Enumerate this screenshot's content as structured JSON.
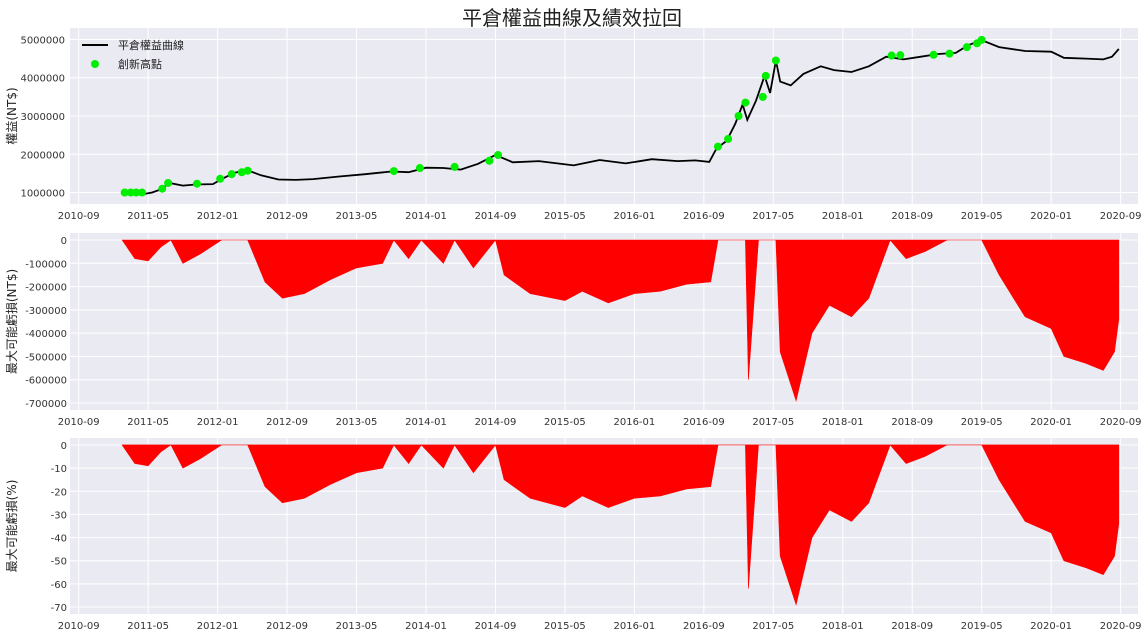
{
  "title": "平倉權益曲線及績效拉回",
  "chart_data": [
    {
      "type": "line",
      "ylabel": "權益(NT$)",
      "x_range": [
        "2010-08",
        "2020-11"
      ],
      "ylim": [
        700000,
        5300000
      ],
      "grid": true,
      "legend_placement": "top-left",
      "y_ticks": [
        1000000,
        2000000,
        3000000,
        4000000,
        5000000
      ],
      "x_ticks": [
        "2010-09",
        "2011-05",
        "2012-01",
        "2012-09",
        "2013-05",
        "2014-01",
        "2014-09",
        "2015-05",
        "2016-01",
        "2016-09",
        "2017-05",
        "2018-01",
        "2018-09",
        "2019-05",
        "2020-01",
        "2020-09"
      ],
      "series": [
        {
          "name": "平倉權益曲線",
          "color": "#000000",
          "points": [
            [
              "2011-02-01",
              1000000
            ],
            [
              "2011-03-15",
              990000
            ],
            [
              "2011-04-15",
              960000
            ],
            [
              "2011-05-15",
              1000000
            ],
            [
              "2011-06-15",
              1080000
            ],
            [
              "2011-07-15",
              1250000
            ],
            [
              "2011-09-01",
              1180000
            ],
            [
              "2011-10-15",
              1210000
            ],
            [
              "2011-12-15",
              1220000
            ],
            [
              "2012-01-15",
              1350000
            ],
            [
              "2012-03-01",
              1520000
            ],
            [
              "2012-04-15",
              1580000
            ],
            [
              "2012-06-01",
              1450000
            ],
            [
              "2012-08-01",
              1340000
            ],
            [
              "2012-10-01",
              1330000
            ],
            [
              "2012-12-01",
              1350000
            ],
            [
              "2013-03-01",
              1420000
            ],
            [
              "2013-06-01",
              1480000
            ],
            [
              "2013-09-01",
              1550000
            ],
            [
              "2013-11-01",
              1530000
            ],
            [
              "2014-01-01",
              1650000
            ],
            [
              "2014-03-01",
              1640000
            ],
            [
              "2014-05-01",
              1600000
            ],
            [
              "2014-07-01",
              1750000
            ],
            [
              "2014-09-01",
              1980000
            ],
            [
              "2014-11-01",
              1790000
            ],
            [
              "2015-02-01",
              1820000
            ],
            [
              "2015-06-01",
              1710000
            ],
            [
              "2015-09-01",
              1850000
            ],
            [
              "2015-12-01",
              1760000
            ],
            [
              "2016-03-01",
              1870000
            ],
            [
              "2016-06-01",
              1820000
            ],
            [
              "2016-08-01",
              1840000
            ],
            [
              "2016-09-20",
              1800000
            ],
            [
              "2016-10-15",
              2150000
            ],
            [
              "2016-11-20",
              2350000
            ],
            [
              "2016-12-20",
              2800000
            ],
            [
              "2017-01-15",
              3300000
            ],
            [
              "2017-02-01",
              2900000
            ],
            [
              "2017-03-01",
              3400000
            ],
            [
              "2017-04-01",
              4050000
            ],
            [
              "2017-04-20",
              3600000
            ],
            [
              "2017-05-10",
              4450000
            ],
            [
              "2017-05-25",
              3900000
            ],
            [
              "2017-07-01",
              3800000
            ],
            [
              "2017-08-15",
              4100000
            ],
            [
              "2017-10-15",
              4300000
            ],
            [
              "2017-12-01",
              4200000
            ],
            [
              "2018-02-01",
              4150000
            ],
            [
              "2018-04-01",
              4300000
            ],
            [
              "2018-06-01",
              4550000
            ],
            [
              "2018-08-01",
              4480000
            ],
            [
              "2018-10-01",
              4550000
            ],
            [
              "2018-12-01",
              4620000
            ],
            [
              "2019-02-01",
              4650000
            ],
            [
              "2019-03-15",
              4850000
            ],
            [
              "2019-05-01",
              4980000
            ],
            [
              "2019-07-01",
              4800000
            ],
            [
              "2019-10-01",
              4700000
            ],
            [
              "2020-01-01",
              4680000
            ],
            [
              "2020-02-15",
              4520000
            ],
            [
              "2020-05-01",
              4500000
            ],
            [
              "2020-07-01",
              4480000
            ],
            [
              "2020-08-01",
              4550000
            ],
            [
              "2020-08-25",
              4750000
            ]
          ]
        },
        {
          "name": "創新高點",
          "color": "#00ee00",
          "points": [
            [
              "2011-02-10",
              1000000
            ],
            [
              "2011-03-01",
              1000000
            ],
            [
              "2011-03-20",
              1000000
            ],
            [
              "2011-04-10",
              1000000
            ],
            [
              "2011-06-20",
              1100000
            ],
            [
              "2011-07-10",
              1250000
            ],
            [
              "2011-10-20",
              1230000
            ],
            [
              "2012-01-10",
              1360000
            ],
            [
              "2012-02-20",
              1480000
            ],
            [
              "2012-03-25",
              1530000
            ],
            [
              "2012-04-15",
              1570000
            ],
            [
              "2013-09-10",
              1560000
            ],
            [
              "2013-12-10",
              1640000
            ],
            [
              "2014-04-10",
              1670000
            ],
            [
              "2014-08-10",
              1830000
            ],
            [
              "2014-09-10",
              1980000
            ],
            [
              "2016-10-20",
              2200000
            ],
            [
              "2016-11-25",
              2400000
            ],
            [
              "2017-01-01",
              3000000
            ],
            [
              "2017-01-25",
              3350000
            ],
            [
              "2017-03-25",
              3500000
            ],
            [
              "2017-04-05",
              4050000
            ],
            [
              "2017-05-10",
              4450000
            ],
            [
              "2018-06-20",
              4580000
            ],
            [
              "2018-07-20",
              4590000
            ],
            [
              "2018-11-15",
              4600000
            ],
            [
              "2019-01-10",
              4630000
            ],
            [
              "2019-03-10",
              4800000
            ],
            [
              "2019-04-15",
              4900000
            ],
            [
              "2019-05-01",
              4990000
            ]
          ]
        }
      ]
    },
    {
      "type": "area",
      "ylabel": "最大可能虧損(NT$)",
      "ylim": [
        -730000,
        30000
      ],
      "grid": true,
      "y_ticks": [
        0,
        -100000,
        -200000,
        -300000,
        -400000,
        -500000,
        -600000,
        -700000
      ],
      "x_ticks": [
        "2010-09",
        "2011-05",
        "2012-01",
        "2012-09",
        "2013-05",
        "2014-01",
        "2014-09",
        "2015-05",
        "2016-01",
        "2016-09",
        "2017-05",
        "2018-01",
        "2018-09",
        "2019-05",
        "2020-01",
        "2020-09"
      ],
      "series": [
        {
          "color": "#ff0000",
          "points": [
            [
              "2011-02-01",
              0
            ],
            [
              "2011-03-15",
              -80000
            ],
            [
              "2011-05-01",
              -90000
            ],
            [
              "2011-06-15",
              -30000
            ],
            [
              "2011-07-20",
              0
            ],
            [
              "2011-09-01",
              -100000
            ],
            [
              "2011-11-01",
              -60000
            ],
            [
              "2012-01-15",
              0
            ],
            [
              "2012-04-15",
              0
            ],
            [
              "2012-06-15",
              -180000
            ],
            [
              "2012-08-15",
              -250000
            ],
            [
              "2012-11-01",
              -230000
            ],
            [
              "2013-02-01",
              -170000
            ],
            [
              "2013-05-01",
              -120000
            ],
            [
              "2013-08-01",
              -100000
            ],
            [
              "2013-09-10",
              0
            ],
            [
              "2013-11-01",
              -80000
            ],
            [
              "2013-12-15",
              0
            ],
            [
              "2014-03-01",
              -100000
            ],
            [
              "2014-04-10",
              0
            ],
            [
              "2014-06-15",
              -120000
            ],
            [
              "2014-09-01",
              0
            ],
            [
              "2014-10-01",
              -150000
            ],
            [
              "2015-01-01",
              -230000
            ],
            [
              "2015-05-01",
              -260000
            ],
            [
              "2015-07-01",
              -220000
            ],
            [
              "2015-10-01",
              -270000
            ],
            [
              "2016-01-01",
              -230000
            ],
            [
              "2016-04-01",
              -220000
            ],
            [
              "2016-07-01",
              -190000
            ],
            [
              "2016-09-25",
              -180000
            ],
            [
              "2016-10-20",
              0
            ],
            [
              "2017-01-25",
              0
            ],
            [
              "2017-02-05",
              -600000
            ],
            [
              "2017-03-10",
              0
            ],
            [
              "2017-05-10",
              0
            ],
            [
              "2017-05-25",
              -480000
            ],
            [
              "2017-07-20",
              -690000
            ],
            [
              "2017-09-15",
              -400000
            ],
            [
              "2017-11-15",
              -280000
            ],
            [
              "2018-02-01",
              -330000
            ],
            [
              "2018-04-01",
              -250000
            ],
            [
              "2018-06-15",
              0
            ],
            [
              "2018-08-10",
              -80000
            ],
            [
              "2018-10-15",
              -50000
            ],
            [
              "2019-01-01",
              0
            ],
            [
              "2019-05-01",
              0
            ],
            [
              "2019-07-01",
              -150000
            ],
            [
              "2019-10-01",
              -330000
            ],
            [
              "2020-01-01",
              -380000
            ],
            [
              "2020-02-15",
              -500000
            ],
            [
              "2020-05-01",
              -530000
            ],
            [
              "2020-07-01",
              -560000
            ],
            [
              "2020-08-10",
              -480000
            ],
            [
              "2020-08-25",
              -340000
            ]
          ]
        }
      ]
    },
    {
      "type": "area",
      "ylabel": "最大可能虧損(%)",
      "ylim": [
        -73,
        3
      ],
      "grid": true,
      "y_ticks": [
        0,
        -10,
        -20,
        -30,
        -40,
        -50,
        -60,
        -70
      ],
      "x_ticks": [
        "2010-09",
        "2011-05",
        "2012-01",
        "2012-09",
        "2013-05",
        "2014-01",
        "2014-09",
        "2015-05",
        "2016-01",
        "2016-09",
        "2017-05",
        "2018-01",
        "2018-09",
        "2019-05",
        "2020-01",
        "2020-09"
      ],
      "series": [
        {
          "color": "#ff0000",
          "points": [
            [
              "2011-02-01",
              0
            ],
            [
              "2011-03-15",
              -8
            ],
            [
              "2011-05-01",
              -9
            ],
            [
              "2011-06-15",
              -3
            ],
            [
              "2011-07-20",
              0
            ],
            [
              "2011-09-01",
              -10
            ],
            [
              "2011-11-01",
              -6
            ],
            [
              "2012-01-15",
              0
            ],
            [
              "2012-04-15",
              0
            ],
            [
              "2012-06-15",
              -18
            ],
            [
              "2012-08-15",
              -25
            ],
            [
              "2012-11-01",
              -23
            ],
            [
              "2013-02-01",
              -17
            ],
            [
              "2013-05-01",
              -12
            ],
            [
              "2013-08-01",
              -10
            ],
            [
              "2013-09-10",
              0
            ],
            [
              "2013-11-01",
              -8
            ],
            [
              "2013-12-15",
              0
            ],
            [
              "2014-03-01",
              -10
            ],
            [
              "2014-04-10",
              0
            ],
            [
              "2014-06-15",
              -12
            ],
            [
              "2014-09-01",
              0
            ],
            [
              "2014-10-01",
              -15
            ],
            [
              "2015-01-01",
              -23
            ],
            [
              "2015-05-01",
              -27
            ],
            [
              "2015-07-01",
              -22
            ],
            [
              "2015-10-01",
              -27
            ],
            [
              "2016-01-01",
              -23
            ],
            [
              "2016-04-01",
              -22
            ],
            [
              "2016-07-01",
              -19
            ],
            [
              "2016-09-25",
              -18
            ],
            [
              "2016-10-20",
              0
            ],
            [
              "2017-01-25",
              0
            ],
            [
              "2017-02-05",
              -62
            ],
            [
              "2017-03-10",
              0
            ],
            [
              "2017-05-10",
              0
            ],
            [
              "2017-05-25",
              -48
            ],
            [
              "2017-07-20",
              -69
            ],
            [
              "2017-09-15",
              -40
            ],
            [
              "2017-11-15",
              -28
            ],
            [
              "2018-02-01",
              -33
            ],
            [
              "2018-04-01",
              -25
            ],
            [
              "2018-06-15",
              0
            ],
            [
              "2018-08-10",
              -8
            ],
            [
              "2018-10-15",
              -5
            ],
            [
              "2019-01-01",
              0
            ],
            [
              "2019-05-01",
              0
            ],
            [
              "2019-07-01",
              -15
            ],
            [
              "2019-10-01",
              -33
            ],
            [
              "2020-01-01",
              -38
            ],
            [
              "2020-02-15",
              -50
            ],
            [
              "2020-05-01",
              -53
            ],
            [
              "2020-07-01",
              -56
            ],
            [
              "2020-08-10",
              -48
            ],
            [
              "2020-08-25",
              -34
            ]
          ]
        }
      ]
    }
  ]
}
